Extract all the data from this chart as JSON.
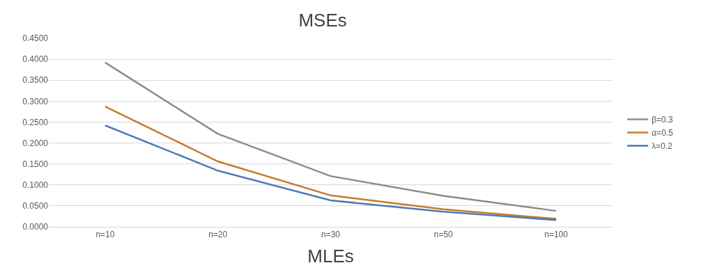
{
  "chart_data": {
    "type": "line",
    "title": "MSEs",
    "xlabel": "MLEs",
    "categories": [
      "n=10",
      "n=20",
      "n=30",
      "n=50",
      "n=100"
    ],
    "series": [
      {
        "name": "β=0.3",
        "color": "#8c8c8c",
        "values": [
          0.392,
          0.222,
          0.121,
          0.074,
          0.038
        ]
      },
      {
        "name": "α=0.5",
        "color": "#c27c2c",
        "values": [
          0.287,
          0.156,
          0.075,
          0.042,
          0.019
        ]
      },
      {
        "name": "λ=0.2",
        "color": "#4a7ab4",
        "values": [
          0.242,
          0.134,
          0.063,
          0.036,
          0.016
        ]
      }
    ],
    "ylim": [
      0,
      0.45
    ],
    "yticks": [
      {
        "value": 0,
        "label": "0.0000"
      },
      {
        "value": 0.05,
        "label": "0.0500"
      },
      {
        "value": 0.1,
        "label": "0.1000"
      },
      {
        "value": 0.15,
        "label": "0.1500"
      },
      {
        "value": 0.2,
        "label": "0.2000"
      },
      {
        "value": 0.25,
        "label": "0.2500"
      },
      {
        "value": 0.3,
        "label": "0.3000"
      },
      {
        "value": 0.35,
        "label": "0.3500"
      },
      {
        "value": 0.4,
        "label": "0.4000"
      },
      {
        "value": 0.45,
        "label": "0.4500"
      }
    ],
    "grid": "y",
    "legend": "right",
    "marker": "none",
    "line_style": "solid"
  }
}
